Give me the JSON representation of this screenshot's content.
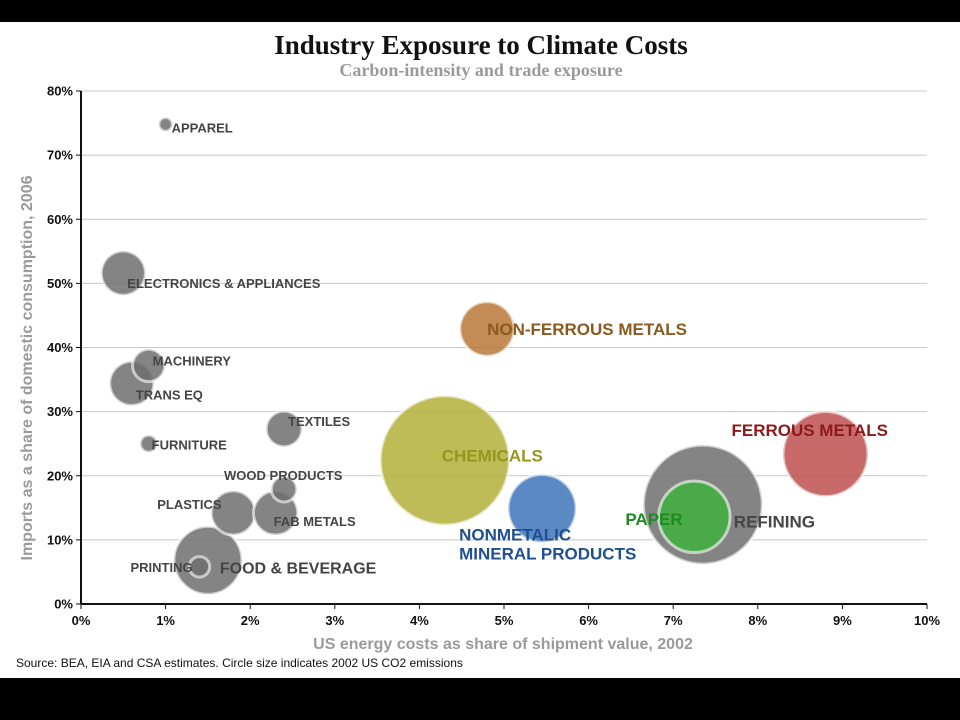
{
  "chart_data": {
    "type": "scatter",
    "title": "Industry Exposure to Climate Costs",
    "subtitle": "Carbon-intensity and trade exposure",
    "xlabel": "US energy costs as share of shipment value, 2002",
    "ylabel": "Imports as a share of domestic consumption, 2006",
    "source": "Source: BEA, EIA and CSA estimates. Circle size indicates 2002 US CO2 emissions",
    "xlim": [
      0,
      10
    ],
    "ylim": [
      0,
      80
    ],
    "x_ticks": [
      "0%",
      "1%",
      "2%",
      "3%",
      "4%",
      "5%",
      "6%",
      "7%",
      "8%",
      "9%",
      "10%"
    ],
    "y_ticks": [
      "0%",
      "10%",
      "20%",
      "30%",
      "40%",
      "50%",
      "60%",
      "70%",
      "80%"
    ],
    "grid": true,
    "size_meaning": "2002 US CO2 emissions (relative bubble radius)",
    "points": [
      {
        "name": "APPAREL",
        "x": 1.0,
        "y": 74.8,
        "size": 0.8,
        "color": "#6e6e6e",
        "label_size": "small",
        "label_color": "#444444",
        "label_line2": ""
      },
      {
        "name": "ELECTRONICS & APPLIANCES",
        "x": 0.5,
        "y": 51.6,
        "size": 2.6,
        "color": "#6e6e6e",
        "label_size": "small",
        "label_color": "#444444",
        "label_line2": ""
      },
      {
        "name": "MACHINERY",
        "x": 0.8,
        "y": 37.2,
        "size": 1.9,
        "color": "#6e6e6e",
        "label_size": "small",
        "label_color": "#444444",
        "label_line2": ""
      },
      {
        "name": "TRANS EQ",
        "x": 0.6,
        "y": 34.4,
        "size": 2.6,
        "color": "#6e6e6e",
        "label_size": "small",
        "label_color": "#444444",
        "label_line2": ""
      },
      {
        "name": "FURNITURE",
        "x": 0.8,
        "y": 25.0,
        "size": 1.0,
        "color": "#6e6e6e",
        "label_size": "small",
        "label_color": "#444444",
        "label_line2": ""
      },
      {
        "name": "TEXTILES",
        "x": 2.4,
        "y": 27.3,
        "size": 2.1,
        "color": "#6e6e6e",
        "label_size": "small",
        "label_color": "#444444",
        "label_line2": ""
      },
      {
        "name": "WOOD PRODUCTS",
        "x": 2.4,
        "y": 17.9,
        "size": 1.5,
        "color": "#6e6e6e",
        "label_size": "small",
        "label_color": "#444444",
        "label_line2": ""
      },
      {
        "name": "PLASTICS",
        "x": 1.8,
        "y": 14.2,
        "size": 2.6,
        "color": "#6e6e6e",
        "label_size": "small",
        "label_color": "#444444",
        "label_line2": ""
      },
      {
        "name": "FAB METALS",
        "x": 2.3,
        "y": 14.2,
        "size": 2.6,
        "color": "#6e6e6e",
        "label_size": "small",
        "label_color": "#444444",
        "label_line2": ""
      },
      {
        "name": "FOOD & BEVERAGE",
        "x": 1.5,
        "y": 6.8,
        "size": 4.0,
        "color": "#6e6e6e",
        "label_size": "medium",
        "label_color": "#444444",
        "label_line2": ""
      },
      {
        "name": "PRINTING",
        "x": 1.4,
        "y": 5.8,
        "size": 1.2,
        "color": "#6e6e6e",
        "label_size": "small",
        "label_color": "#444444",
        "label_line2": ""
      },
      {
        "name": "NON-FERROUS METALS",
        "x": 4.8,
        "y": 42.9,
        "size": 3.2,
        "color": "#b8783a",
        "label_size": "large",
        "label_color": "#8a5a1e",
        "label_line2": ""
      },
      {
        "name": "CHEMICALS",
        "x": 4.3,
        "y": 22.4,
        "size": 7.6,
        "color": "#b3b03a",
        "label_size": "large",
        "label_color": "#96951f",
        "label_line2": ""
      },
      {
        "name": "NONMETALIC",
        "x": 5.45,
        "y": 14.9,
        "size": 4.0,
        "color": "#3d74b8",
        "label_size": "large",
        "label_color": "#1f4f8f",
        "label_line2": "MINERAL PRODUCTS"
      },
      {
        "name": "REFINING",
        "x": 7.35,
        "y": 15.5,
        "size": 7.0,
        "color": "#6e6e6e",
        "label_size": "large",
        "label_color": "#444444",
        "label_line2": ""
      },
      {
        "name": "PAPER",
        "x": 7.25,
        "y": 13.6,
        "size": 4.2,
        "color": "#40b040",
        "label_size": "large",
        "label_color": "#1e8c1e",
        "label_line2": ""
      },
      {
        "name": "FERROUS METALS",
        "x": 8.8,
        "y": 23.4,
        "size": 5.0,
        "color": "#c05050",
        "label_size": "large",
        "label_color": "#8b1a1a",
        "label_line2": ""
      }
    ]
  }
}
